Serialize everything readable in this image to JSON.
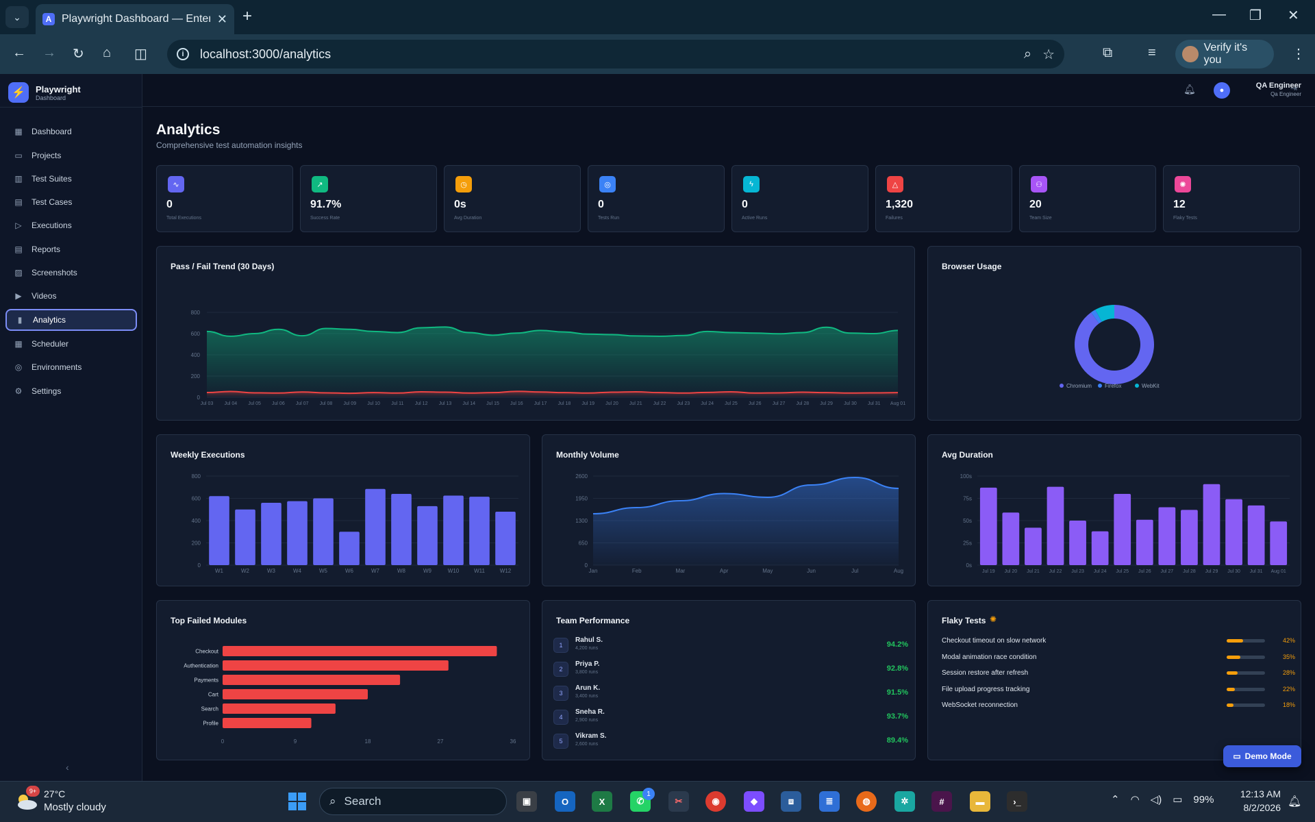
{
  "browser": {
    "tab_title": "Playwright Dashboard — Enterp",
    "url": "localhost:3000/analytics",
    "verify_label": "Verify it's you",
    "favicon_letter": "A"
  },
  "app": {
    "brand_name": "Playwright",
    "brand_sub": "Dashboard",
    "nav": [
      {
        "label": "Dashboard",
        "icon": "grid-icon"
      },
      {
        "label": "Projects",
        "icon": "folder-icon"
      },
      {
        "label": "Test Suites",
        "icon": "layers-icon"
      },
      {
        "label": "Test Cases",
        "icon": "file-icon"
      },
      {
        "label": "Executions",
        "icon": "play-icon"
      },
      {
        "label": "Reports",
        "icon": "report-icon"
      },
      {
        "label": "Screenshots",
        "icon": "image-icon"
      },
      {
        "label": "Videos",
        "icon": "video-icon"
      },
      {
        "label": "Analytics",
        "icon": "chart-icon",
        "active": true
      },
      {
        "label": "Scheduler",
        "icon": "calendar-icon"
      },
      {
        "label": "Environments",
        "icon": "globe-icon"
      },
      {
        "label": "Settings",
        "icon": "gear-icon"
      }
    ],
    "user": {
      "name": "QA Engineer",
      "role": "Qa Engineer"
    }
  },
  "page": {
    "title": "Analytics",
    "subtitle": "Comprehensive test automation insights"
  },
  "stats": [
    {
      "value": "0",
      "label": "Total Executions",
      "color": "#6366f1",
      "icon": "activity-icon"
    },
    {
      "value": "91.7%",
      "label": "Success Rate",
      "color": "#10b981",
      "icon": "trend-up-icon"
    },
    {
      "value": "0s",
      "label": "Avg Duration",
      "color": "#f59e0b",
      "icon": "clock-icon"
    },
    {
      "value": "0",
      "label": "Tests Run",
      "color": "#3b82f6",
      "icon": "target-icon"
    },
    {
      "value": "0",
      "label": "Active Runs",
      "color": "#06b6d4",
      "icon": "zap-icon"
    },
    {
      "value": "1,320",
      "label": "Failures",
      "color": "#ef4444",
      "icon": "alert-icon"
    },
    {
      "value": "20",
      "label": "Team Size",
      "color": "#a855f7",
      "icon": "users-icon"
    },
    {
      "value": "12",
      "label": "Flaky Tests",
      "color": "#ec4899",
      "icon": "bug-icon"
    }
  ],
  "cards": {
    "trend_title": "Pass / Fail Trend (30 Days)",
    "browser_title": "Browser Usage",
    "weekly_title": "Weekly Executions",
    "monthly_title": "Monthly Volume",
    "duration_title": "Avg Duration",
    "failed_title": "Top Failed Modules",
    "team_title": "Team Performance",
    "flaky_title": "Flaky Tests"
  },
  "chart_data": [
    {
      "type": "area",
      "title": "Pass / Fail Trend (30 Days)",
      "categories": [
        "Jul 03",
        "Jul 04",
        "Jul 05",
        "Jul 06",
        "Jul 07",
        "Jul 08",
        "Jul 09",
        "Jul 10",
        "Jul 11",
        "Jul 12",
        "Jul 13",
        "Jul 14",
        "Jul 15",
        "Jul 16",
        "Jul 17",
        "Jul 18",
        "Jul 19",
        "Jul 20",
        "Jul 21",
        "Jul 22",
        "Jul 23",
        "Jul 24",
        "Jul 25",
        "Jul 26",
        "Jul 27",
        "Jul 28",
        "Jul 29",
        "Jul 30",
        "Jul 31",
        "Aug 01"
      ],
      "yticks": [
        0,
        200,
        400,
        600,
        800
      ],
      "ylim": [
        0,
        800
      ],
      "series": [
        {
          "color": "#10b981",
          "values": [
            620,
            575,
            600,
            640,
            580,
            648,
            640,
            620,
            610,
            655,
            662,
            610,
            585,
            605,
            630,
            615,
            595,
            590,
            578,
            575,
            582,
            620,
            610,
            605,
            598,
            610,
            660,
            605,
            600,
            630
          ]
        },
        {
          "color": "#ef4444",
          "values": [
            45,
            55,
            42,
            40,
            50,
            42,
            38,
            44,
            40,
            52,
            48,
            40,
            44,
            56,
            50,
            44,
            40,
            48,
            52,
            44,
            40,
            46,
            52,
            40,
            42,
            48,
            44,
            40,
            42,
            44
          ]
        }
      ]
    },
    {
      "type": "pie",
      "title": "Browser Usage",
      "categories": [
        "Chromium",
        "Firefox",
        "WebKit"
      ],
      "values": [
        90,
        2,
        8
      ],
      "colors": [
        "#6366f1",
        "#3b82f6",
        "#06b6d4"
      ]
    },
    {
      "type": "bar",
      "title": "Weekly Executions",
      "categories": [
        "W1",
        "W2",
        "W3",
        "W4",
        "W5",
        "W6",
        "W7",
        "W8",
        "W9",
        "W10",
        "W11",
        "W12"
      ],
      "values": [
        620,
        500,
        560,
        575,
        600,
        300,
        685,
        640,
        530,
        625,
        615,
        480
      ],
      "yticks": [
        0,
        200,
        400,
        600,
        800
      ],
      "ylim": [
        0,
        800
      ],
      "color": "#6366f1"
    },
    {
      "type": "area",
      "title": "Monthly Volume",
      "categories": [
        "Jan",
        "Feb",
        "Mar",
        "Apr",
        "May",
        "Jun",
        "Jul",
        "Aug"
      ],
      "values": [
        1500,
        1680,
        1880,
        2090,
        1980,
        2340,
        2560,
        2240
      ],
      "yticks": [
        0,
        650,
        1300,
        1950,
        2600
      ],
      "ylim": [
        0,
        2600
      ],
      "color": "#3b82f6"
    },
    {
      "type": "bar",
      "title": "Avg Duration",
      "categories": [
        "Jul 19",
        "Jul 20",
        "Jul 21",
        "Jul 22",
        "Jul 23",
        "Jul 24",
        "Jul 25",
        "Jul 26",
        "Jul 27",
        "Jul 28",
        "Jul 29",
        "Jul 30",
        "Jul 31",
        "Aug 01"
      ],
      "values": [
        87,
        59,
        42,
        88,
        50,
        38,
        80,
        51,
        65,
        62,
        91,
        74,
        67,
        49
      ],
      "ytick_labels": [
        "0s",
        "25s",
        "50s",
        "75s",
        "100s"
      ],
      "ylim": [
        0,
        100
      ],
      "color": "#8b5cf6"
    },
    {
      "type": "bar",
      "orientation": "horizontal",
      "title": "Top Failed Modules",
      "categories": [
        "Checkout",
        "Authentication",
        "Payments",
        "Cart",
        "Search",
        "Profile"
      ],
      "values": [
        34,
        28,
        22,
        18,
        14,
        11
      ],
      "xticks": [
        0,
        9,
        18,
        27,
        36
      ],
      "xlim": [
        0,
        36
      ],
      "color": "#ef4444"
    }
  ],
  "team": [
    {
      "rank": "1",
      "name": "Rahul S.",
      "runs": "4,200 runs",
      "rate": "94.2%"
    },
    {
      "rank": "2",
      "name": "Priya P.",
      "runs": "3,800 runs",
      "rate": "92.8%"
    },
    {
      "rank": "3",
      "name": "Arun K.",
      "runs": "3,400 runs",
      "rate": "91.5%"
    },
    {
      "rank": "4",
      "name": "Sneha R.",
      "runs": "2,900 runs",
      "rate": "93.7%"
    },
    {
      "rank": "5",
      "name": "Vikram S.",
      "runs": "2,600 runs",
      "rate": "89.4%"
    }
  ],
  "flaky": [
    {
      "name": "Checkout timeout on slow network",
      "pct": "42%",
      "fraction": 0.42
    },
    {
      "name": "Modal animation race condition",
      "pct": "35%",
      "fraction": 0.35
    },
    {
      "name": "Session restore after refresh",
      "pct": "28%",
      "fraction": 0.28
    },
    {
      "name": "File upload progress tracking",
      "pct": "22%",
      "fraction": 0.22
    },
    {
      "name": "WebSocket reconnection",
      "pct": "18%",
      "fraction": 0.18
    }
  ],
  "demo_label": "Demo Mode",
  "taskbar": {
    "weather_badge": "9+",
    "temperature": "27°C",
    "condition": "Mostly cloudy",
    "search_placeholder": "Search",
    "whatsapp_badge": "1",
    "battery": "99%",
    "time": "12:13 AM",
    "date": "8/2/2026"
  }
}
